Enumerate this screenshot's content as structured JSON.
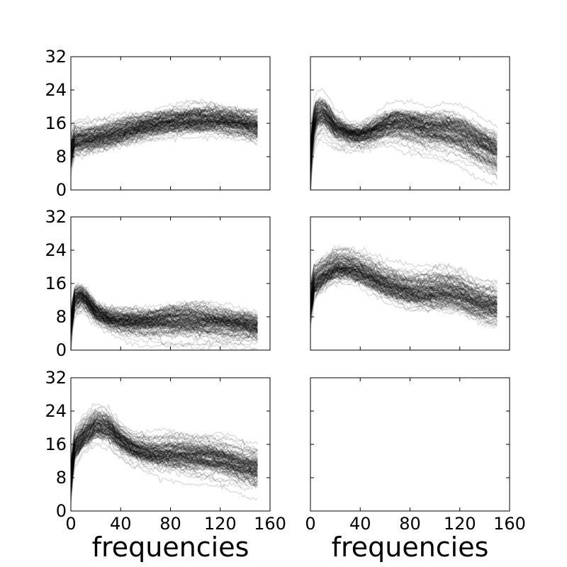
{
  "chart_data": [
    {
      "type": "line",
      "panel": "row1-col1",
      "xlim": [
        0,
        160
      ],
      "ylim": [
        0,
        32
      ],
      "yticks": [
        "0",
        "8",
        "16",
        "24",
        "32"
      ],
      "xticks": [
        0,
        40,
        80,
        120,
        160
      ],
      "show_yticklabels": true,
      "show_xticklabels": false,
      "xlabel": "",
      "line_color": "#000000",
      "line_alpha": 0.15,
      "n_curves": 120,
      "x": [
        0,
        10,
        20,
        30,
        40,
        50,
        60,
        70,
        80,
        90,
        100,
        110,
        120,
        130,
        140,
        150
      ],
      "mean": [
        11.5,
        12,
        12.5,
        13,
        13.8,
        14.5,
        15.2,
        15.8,
        16.3,
        16.6,
        16.8,
        16.8,
        16.6,
        16.2,
        15.8,
        15.2
      ],
      "spread": [
        1.8,
        1.7,
        1.6,
        1.6,
        1.6,
        1.6,
        1.6,
        1.6,
        1.6,
        1.6,
        1.6,
        1.6,
        1.6,
        1.7,
        1.8,
        1.9
      ]
    },
    {
      "type": "line",
      "panel": "row1-col2",
      "xlim": [
        0,
        160
      ],
      "ylim": [
        0,
        32
      ],
      "xticks": [
        0,
        40,
        80,
        120,
        160
      ],
      "show_yticklabels": false,
      "show_xticklabels": false,
      "xlabel": "",
      "line_color": "#000000",
      "line_alpha": 0.15,
      "n_curves": 120,
      "x": [
        0,
        2,
        5,
        10,
        15,
        20,
        30,
        40,
        50,
        60,
        70,
        80,
        90,
        100,
        110,
        120,
        130,
        140,
        150
      ],
      "mean": [
        9,
        15,
        18,
        18.5,
        17,
        15,
        13.5,
        13,
        14,
        15.5,
        16,
        15.5,
        14.8,
        14.5,
        14.2,
        13.5,
        12,
        10.5,
        9
      ],
      "spread": [
        3,
        2.5,
        2.5,
        2.2,
        2,
        1.8,
        1.6,
        1.6,
        1.8,
        2,
        2.2,
        2.4,
        2.6,
        2.8,
        3,
        3,
        3,
        3,
        3
      ]
    },
    {
      "type": "line",
      "panel": "row2-col1",
      "xlim": [
        0,
        160
      ],
      "ylim": [
        0,
        32
      ],
      "yticks": [
        "0",
        "8",
        "16",
        "24",
        "32"
      ],
      "xticks": [
        0,
        40,
        80,
        120,
        160
      ],
      "show_yticklabels": true,
      "show_xticklabels": false,
      "xlabel": "",
      "line_color": "#000000",
      "line_alpha": 0.15,
      "n_curves": 120,
      "x": [
        0,
        3,
        8,
        12,
        20,
        30,
        40,
        60,
        80,
        100,
        120,
        140,
        150
      ],
      "mean": [
        8,
        12,
        13,
        12,
        9,
        7.5,
        7,
        6.8,
        7,
        7,
        6.5,
        6,
        5.5
      ],
      "spread": [
        2,
        2,
        1.8,
        1.7,
        1.5,
        1.3,
        1.6,
        2,
        2.5,
        2.6,
        2.4,
        2.2,
        2
      ]
    },
    {
      "type": "line",
      "panel": "row2-col2",
      "xlim": [
        0,
        160
      ],
      "ylim": [
        0,
        32
      ],
      "xticks": [
        0,
        40,
        80,
        120,
        160
      ],
      "show_yticklabels": false,
      "show_xticklabels": false,
      "xlabel": "",
      "line_color": "#000000",
      "line_alpha": 0.15,
      "n_curves": 120,
      "x": [
        0,
        3,
        10,
        20,
        30,
        40,
        50,
        60,
        70,
        80,
        90,
        100,
        110,
        120,
        130,
        140,
        150
      ],
      "mean": [
        13,
        16,
        18,
        20,
        20,
        19,
        17.5,
        16,
        15,
        14.2,
        13.8,
        14,
        14,
        13.5,
        12,
        11,
        10.5
      ],
      "spread": [
        2.5,
        2.2,
        2,
        2,
        2,
        2,
        2.1,
        2.2,
        2.3,
        2.4,
        2.5,
        2.6,
        2.6,
        2.6,
        2.6,
        2.6,
        2.6
      ]
    },
    {
      "type": "line",
      "panel": "row3-col1",
      "xlim": [
        0,
        160
      ],
      "ylim": [
        0,
        32
      ],
      "yticks": [
        "0",
        "8",
        "16",
        "24",
        "32"
      ],
      "xticks": [
        "0",
        "40",
        "80",
        "120",
        "160"
      ],
      "show_yticklabels": true,
      "show_xticklabels": true,
      "xlabel": "frequencies",
      "line_color": "#000000",
      "line_alpha": 0.15,
      "n_curves": 120,
      "x": [
        0,
        3,
        10,
        20,
        30,
        40,
        50,
        60,
        70,
        80,
        90,
        100,
        110,
        120,
        130,
        140,
        150
      ],
      "mean": [
        10,
        15,
        18,
        20.5,
        20,
        17,
        15,
        14,
        13.5,
        13.5,
        13.3,
        13,
        12.8,
        12.3,
        11.5,
        10.5,
        10
      ],
      "spread": [
        2.5,
        2.2,
        2,
        2,
        2,
        2,
        2,
        2.1,
        2.3,
        2.5,
        2.6,
        2.6,
        2.6,
        2.6,
        2.6,
        2.6,
        2.6
      ]
    },
    {
      "type": "line",
      "panel": "row3-col2",
      "xlim": [
        0,
        160
      ],
      "ylim": [
        0,
        32
      ],
      "xticks": [
        "0",
        "40",
        "80",
        "120",
        "160"
      ],
      "show_yticklabels": false,
      "show_xticklabels": true,
      "xlabel": "frequencies",
      "line_color": "#000000",
      "line_alpha": 0.15,
      "n_curves": 0,
      "x": [],
      "mean": [],
      "spread": []
    }
  ]
}
